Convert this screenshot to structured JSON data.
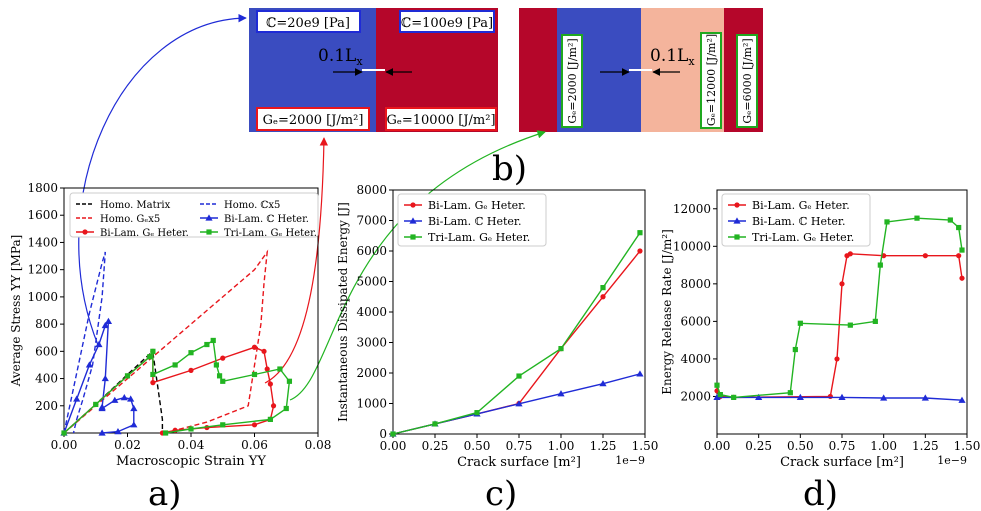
{
  "panel_labels": {
    "a": "a)",
    "b": "b)",
    "c": "c)",
    "d": "d)"
  },
  "bilaminate": {
    "left_stiffness": "ℂ=20e9 [Pa]",
    "right_stiffness": "ℂ=100e9 [Pa]",
    "left_gc": "Gₑ=2000 [J/m²]",
    "right_gc": "Gₑ=10000 [J/m²]",
    "crack_length": "0.1L",
    "crack_length_sub": "x",
    "colors": {
      "blue": "#3a4cc0",
      "red": "#b5062a"
    }
  },
  "trilaminate": {
    "gc_blue": "Gₑ=2000 [J/m²]",
    "gc_salmon": "Gₑ=12000 [J/m²]",
    "gc_red": "Gₑ=6000 [J/m²]",
    "crack_length": "0.1L",
    "crack_length_sub": "x",
    "colors": {
      "red": "#b5062a",
      "blue": "#3a4cc0",
      "salmon": "#f4b49c",
      "label_border": "#1fa81f"
    }
  },
  "chart_data": [
    {
      "id": "a",
      "type": "line",
      "xlabel": "Macroscopic Strain YY",
      "ylabel": "Average Stress YY [MPa]",
      "xlim": [
        0,
        0.08
      ],
      "ylim": [
        0,
        1800
      ],
      "xticks": [
        "0.00",
        "0.02",
        "0.04",
        "0.06",
        "0.08"
      ],
      "yticks": [
        "200",
        "400",
        "600",
        "800",
        "1000",
        "1200",
        "1400",
        "1600",
        "1800"
      ],
      "grid": false,
      "legend_position": "top",
      "series": [
        {
          "name": "Homo. Matrix",
          "color": "#000000",
          "dash": "dash",
          "marker": "none",
          "x": [
            0,
            0.01,
            0.02,
            0.027,
            0.028,
            0.03,
            0.031,
            0.031
          ],
          "y": [
            0,
            210,
            430,
            580,
            590,
            260,
            100,
            0
          ]
        },
        {
          "name": "Homo. ℂx5",
          "color": "#1f2bd6",
          "dash": "dash",
          "marker": "none",
          "x": [
            0,
            0.004,
            0.008,
            0.012,
            0.013,
            0.012,
            0.009,
            0.006,
            0.004,
            0.003
          ],
          "y": [
            0,
            440,
            880,
            1250,
            1330,
            1000,
            500,
            250,
            100,
            0
          ]
        },
        {
          "name": "Homo. Gₑx5",
          "color": "#e8161c",
          "dash": "dash",
          "marker": "none",
          "x": [
            0,
            0.02,
            0.04,
            0.06,
            0.064,
            0.063,
            0.062,
            0.058,
            0.045,
            0.035,
            0.032
          ],
          "y": [
            0,
            400,
            800,
            1200,
            1330,
            1100,
            800,
            200,
            80,
            20,
            0
          ]
        },
        {
          "name": "Bi-Lam. ℂ Heter.",
          "color": "#1f2bd6",
          "dash": "solid",
          "marker": "triangle",
          "x": [
            0,
            0.004,
            0.008,
            0.011,
            0.013,
            0.014,
            0.013,
            0.012,
            0.012,
            0.016,
            0.019,
            0.021,
            0.022,
            0.022,
            0.017,
            0.012
          ],
          "y": [
            0,
            250,
            500,
            650,
            790,
            820,
            400,
            190,
            180,
            240,
            260,
            250,
            180,
            60,
            10,
            0
          ]
        },
        {
          "name": "Bi-Lam. Gₑ Heter.",
          "color": "#e8161c",
          "dash": "solid",
          "marker": "circle",
          "x": [
            0,
            0.01,
            0.02,
            0.027,
            0.028,
            0.028,
            0.04,
            0.05,
            0.06,
            0.063,
            0.064,
            0.065,
            0.066,
            0.065,
            0.06,
            0.045,
            0.035,
            0.031
          ],
          "y": [
            0,
            210,
            420,
            560,
            600,
            370,
            460,
            550,
            630,
            600,
            470,
            360,
            200,
            100,
            60,
            40,
            20,
            0
          ]
        },
        {
          "name": "Tri-Lam. Gₑ Heter.",
          "color": "#22b422",
          "dash": "solid",
          "marker": "square",
          "x": [
            0,
            0.01,
            0.02,
            0.027,
            0.028,
            0.028,
            0.035,
            0.04,
            0.045,
            0.047,
            0.048,
            0.049,
            0.05,
            0.06,
            0.068,
            0.071,
            0.07,
            0.065,
            0.05,
            0.04,
            0.032
          ],
          "y": [
            0,
            210,
            420,
            560,
            600,
            430,
            500,
            590,
            650,
            680,
            500,
            420,
            380,
            430,
            470,
            380,
            180,
            100,
            60,
            30,
            0
          ]
        }
      ]
    },
    {
      "id": "c",
      "type": "line",
      "xlabel": "Crack surface [m²]",
      "ylabel": "Instantaneous Dissipated Energy [J]",
      "x_multiplier": "1e−9",
      "xlim": [
        0,
        1.5
      ],
      "ylim": [
        0,
        8000
      ],
      "xticks": [
        "0.00",
        "0.25",
        "0.50",
        "0.75",
        "1.00",
        "1.25",
        "1.50"
      ],
      "yticks": [
        "0",
        "1000",
        "2000",
        "3000",
        "4000",
        "5000",
        "6000",
        "7000",
        "8000"
      ],
      "grid": false,
      "legend_position": "top-left",
      "series": [
        {
          "name": "Bi-Lam. Gₑ Heter.",
          "color": "#e8161c",
          "marker": "circle",
          "x": [
            0,
            0.25,
            0.5,
            0.75,
            1.0,
            1.25,
            1.47
          ],
          "y": [
            0,
            330,
            660,
            1000,
            2800,
            4500,
            6000
          ]
        },
        {
          "name": "Bi-Lam. ℂ Heter.",
          "color": "#1f2bd6",
          "marker": "triangle",
          "x": [
            0,
            0.25,
            0.5,
            0.75,
            1.0,
            1.25,
            1.47
          ],
          "y": [
            0,
            330,
            660,
            990,
            1320,
            1650,
            1970
          ]
        },
        {
          "name": "Tri-Lam. Gₑ Heter.",
          "color": "#22b422",
          "marker": "square",
          "x": [
            0,
            0.25,
            0.5,
            0.75,
            1.0,
            1.25,
            1.47
          ],
          "y": [
            0,
            330,
            700,
            1900,
            2800,
            4800,
            6600
          ]
        }
      ]
    },
    {
      "id": "d",
      "type": "line",
      "xlabel": "Crack surface [m²]",
      "ylabel": "Energy Release Rate [J/m²]",
      "x_multiplier": "1e−9",
      "xlim": [
        0,
        1.5
      ],
      "ylim": [
        0,
        13000
      ],
      "xticks": [
        "0.00",
        "0.25",
        "0.50",
        "0.75",
        "1.00",
        "1.25",
        "1.50"
      ],
      "yticks": [
        "2000",
        "4000",
        "6000",
        "8000",
        "10000",
        "12000"
      ],
      "grid": false,
      "legend_position": "top-left",
      "series": [
        {
          "name": "Bi-Lam. Gₑ Heter.",
          "color": "#e8161c",
          "marker": "circle",
          "x": [
            0,
            0.02,
            0.1,
            0.68,
            0.72,
            0.75,
            0.78,
            0.8,
            1.0,
            1.25,
            1.45,
            1.47
          ],
          "y": [
            2300,
            2000,
            1950,
            2000,
            4000,
            8000,
            9500,
            9600,
            9500,
            9500,
            9500,
            8300
          ]
        },
        {
          "name": "Bi-Lam. ℂ Heter.",
          "color": "#1f2bd6",
          "marker": "triangle",
          "x": [
            0,
            0.25,
            0.5,
            0.75,
            1.0,
            1.25,
            1.47
          ],
          "y": [
            1950,
            1950,
            1950,
            1950,
            1920,
            1920,
            1800
          ]
        },
        {
          "name": "Tri-Lam. Gₑ Heter.",
          "color": "#22b422",
          "marker": "square",
          "x": [
            0,
            0.02,
            0.1,
            0.44,
            0.47,
            0.5,
            0.8,
            0.95,
            0.98,
            1.02,
            1.2,
            1.4,
            1.45,
            1.47
          ],
          "y": [
            2600,
            2100,
            1950,
            2200,
            4500,
            5900,
            5800,
            6000,
            9000,
            11300,
            11500,
            11400,
            11000,
            9800
          ]
        }
      ]
    }
  ]
}
